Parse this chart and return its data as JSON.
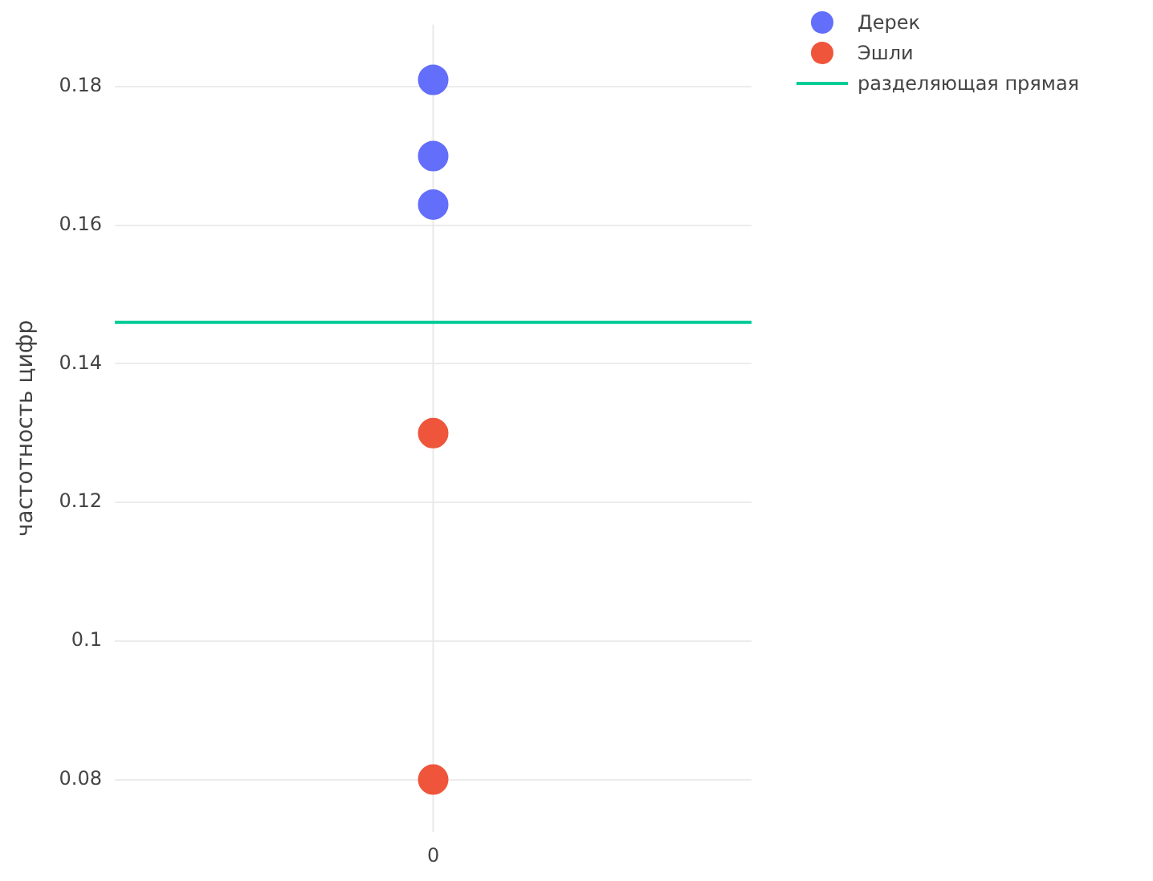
{
  "chart_data": {
    "type": "scatter",
    "ylabel": "частотность цифр",
    "categories": [
      "0"
    ],
    "series": [
      {
        "name": "Дерек",
        "color": "#636efa",
        "x": [
          "0",
          "0",
          "0"
        ],
        "values": [
          0.181,
          0.17,
          0.163
        ]
      },
      {
        "name": "Эшли",
        "color": "#ef553b",
        "x": [
          "0",
          "0"
        ],
        "values": [
          0.13,
          0.08
        ]
      }
    ],
    "ylim": [
      0.0724,
      0.189
    ],
    "yticks": [
      0.08,
      0.1,
      0.12,
      0.14,
      0.16,
      0.18
    ],
    "grid": "y",
    "legend": "top right",
    "marker": "circle",
    "ref_lines": [
      {
        "axis": "x",
        "value": "0",
        "color": "#e8e8e8"
      },
      {
        "axis": "y",
        "value": 0.146,
        "label": "разделяющая прямая",
        "color": "#00cc96"
      }
    ]
  }
}
